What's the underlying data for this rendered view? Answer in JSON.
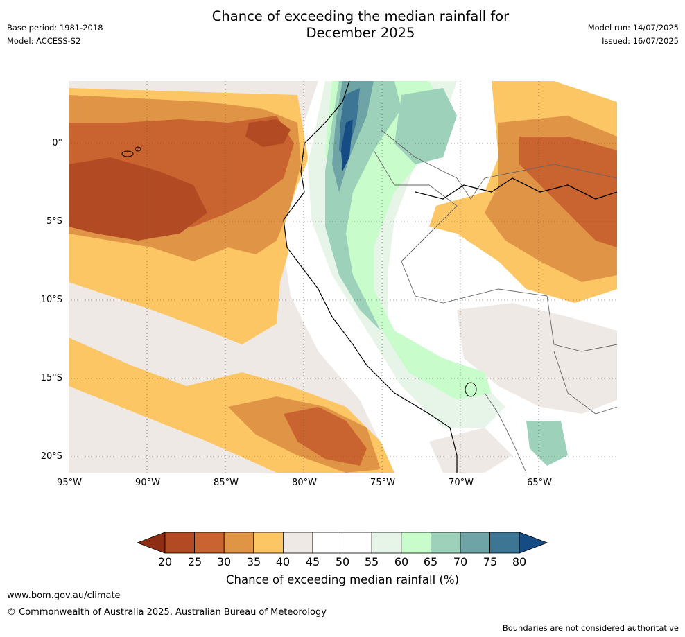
{
  "header": {
    "title_line1": "Chance of exceeding the median rainfall for",
    "title_line2": "December 2025",
    "base_period": "Base period: 1981-2018",
    "model": "Model: ACCESS-S2",
    "model_run": "Model run: 14/07/2025",
    "issued": "Issued: 16/07/2025"
  },
  "map": {
    "lat_labels": [
      "0°",
      "5°S",
      "10°S",
      "15°S",
      "20°S"
    ],
    "lon_labels": [
      "95°W",
      "90°W",
      "85°W",
      "80°W",
      "75°W",
      "70°W",
      "65°W"
    ],
    "extent": {
      "lon_min": -95,
      "lon_max": -60,
      "lat_min": -21,
      "lat_max": 4
    }
  },
  "colorbar": {
    "label": "Chance of exceeding median rainfall (%)",
    "ticks": [
      "20",
      "25",
      "30",
      "35",
      "40",
      "45",
      "50",
      "55",
      "60",
      "65",
      "70",
      "75",
      "80"
    ],
    "colors": [
      "#8c2d14",
      "#b24a24",
      "#c9632f",
      "#df9446",
      "#fdc665",
      "#eee9e5",
      "#ffffff",
      "#ffffff",
      "#e7f5e9",
      "#c8fccb",
      "#9dd1b9",
      "#6ea4a5",
      "#3d7594",
      "#144c83"
    ]
  },
  "footer": {
    "url": "www.bom.gov.au/climate",
    "copyright": "© Commonwealth of Australia 2025, Australian Bureau of Meteorology",
    "disclaimer": "Boundaries are not considered authoritative"
  }
}
